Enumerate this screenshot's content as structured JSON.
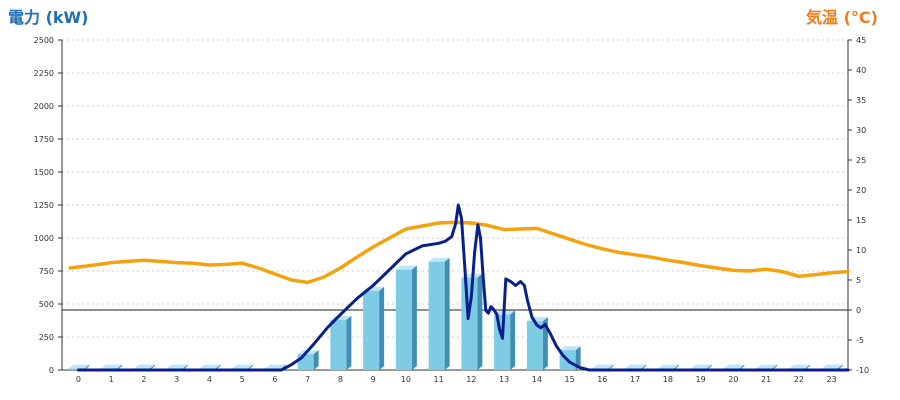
{
  "chart_data": {
    "type": "bar",
    "left_axis_label": "電力 (kW)",
    "right_axis_label": "気温 (°C)",
    "categories": [
      "0",
      "1",
      "2",
      "3",
      "4",
      "5",
      "6",
      "7",
      "8",
      "9",
      "10",
      "11",
      "12",
      "13",
      "14",
      "15",
      "16",
      "17",
      "18",
      "19",
      "20",
      "21",
      "22",
      "23"
    ],
    "ylim": [
      0,
      2500
    ],
    "y2lim": [
      -10,
      45
    ],
    "y_ticks": [
      0,
      250,
      500,
      750,
      1000,
      1250,
      1500,
      1750,
      2000,
      2250,
      2500
    ],
    "y2_ticks": [
      -10,
      -5,
      0,
      5,
      10,
      15,
      20,
      25,
      30,
      35,
      40,
      45
    ],
    "grid": true,
    "bars": {
      "color": "#7ecbe6",
      "values": [
        10,
        10,
        10,
        10,
        10,
        10,
        10,
        120,
        380,
        600,
        760,
        820,
        700,
        420,
        370,
        150,
        10,
        10,
        10,
        10,
        10,
        10,
        10,
        10
      ]
    },
    "power_line": {
      "color": "#0a1f8a",
      "points": [
        [
          0,
          0
        ],
        [
          6.2,
          0
        ],
        [
          6.5,
          40
        ],
        [
          6.8,
          90
        ],
        [
          7.2,
          200
        ],
        [
          7.6,
          320
        ],
        [
          8,
          420
        ],
        [
          8.5,
          540
        ],
        [
          9,
          640
        ],
        [
          9.5,
          760
        ],
        [
          10,
          880
        ],
        [
          10.5,
          940
        ],
        [
          11,
          960
        ],
        [
          11.2,
          975
        ],
        [
          11.4,
          1010
        ],
        [
          11.52,
          1110
        ],
        [
          11.6,
          1250
        ],
        [
          11.7,
          1150
        ],
        [
          11.8,
          780
        ],
        [
          11.9,
          390
        ],
        [
          12,
          560
        ],
        [
          12.1,
          890
        ],
        [
          12.2,
          1100
        ],
        [
          12.28,
          1000
        ],
        [
          12.36,
          700
        ],
        [
          12.44,
          450
        ],
        [
          12.52,
          430
        ],
        [
          12.6,
          480
        ],
        [
          12.68,
          460
        ],
        [
          12.78,
          420
        ],
        [
          12.86,
          310
        ],
        [
          12.95,
          240
        ],
        [
          13.05,
          690
        ],
        [
          13.2,
          670
        ],
        [
          13.35,
          640
        ],
        [
          13.5,
          670
        ],
        [
          13.62,
          640
        ],
        [
          13.72,
          520
        ],
        [
          13.85,
          400
        ],
        [
          14,
          340
        ],
        [
          14.12,
          320
        ],
        [
          14.25,
          345
        ],
        [
          14.4,
          280
        ],
        [
          14.6,
          180
        ],
        [
          14.8,
          110
        ],
        [
          15,
          60
        ],
        [
          15.3,
          20
        ],
        [
          15.6,
          0
        ],
        [
          23.5,
          0
        ]
      ]
    },
    "temp_line": {
      "color": "#f5a210",
      "points": [
        [
          -0.25,
          7.0
        ],
        [
          0.5,
          7.5
        ],
        [
          1,
          7.9
        ],
        [
          1.5,
          8.1
        ],
        [
          2,
          8.3
        ],
        [
          2.5,
          8.1
        ],
        [
          3,
          7.9
        ],
        [
          3.5,
          7.8
        ],
        [
          4,
          7.5
        ],
        [
          4.5,
          7.6
        ],
        [
          5,
          7.8
        ],
        [
          5.5,
          7.0
        ],
        [
          6,
          6.0
        ],
        [
          6.5,
          5.0
        ],
        [
          7,
          4.6
        ],
        [
          7.5,
          5.5
        ],
        [
          8,
          7.0
        ],
        [
          8.5,
          8.8
        ],
        [
          9,
          10.5
        ],
        [
          9.5,
          12.0
        ],
        [
          10,
          13.5
        ],
        [
          10.5,
          14.0
        ],
        [
          11,
          14.5
        ],
        [
          11.5,
          14.6
        ],
        [
          12,
          14.5
        ],
        [
          12.5,
          14.1
        ],
        [
          13,
          13.4
        ],
        [
          13.5,
          13.5
        ],
        [
          14,
          13.6
        ],
        [
          14.5,
          12.7
        ],
        [
          15,
          11.8
        ],
        [
          15.5,
          10.9
        ],
        [
          16,
          10.2
        ],
        [
          16.5,
          9.6
        ],
        [
          17,
          9.2
        ],
        [
          17.5,
          8.8
        ],
        [
          18,
          8.3
        ],
        [
          18.5,
          7.9
        ],
        [
          19,
          7.4
        ],
        [
          19.5,
          7.0
        ],
        [
          20,
          6.6
        ],
        [
          20.5,
          6.5
        ],
        [
          21,
          6.8
        ],
        [
          21.5,
          6.4
        ],
        [
          22,
          5.6
        ],
        [
          22.5,
          5.9
        ],
        [
          23,
          6.2
        ],
        [
          23.5,
          6.4
        ]
      ]
    }
  }
}
